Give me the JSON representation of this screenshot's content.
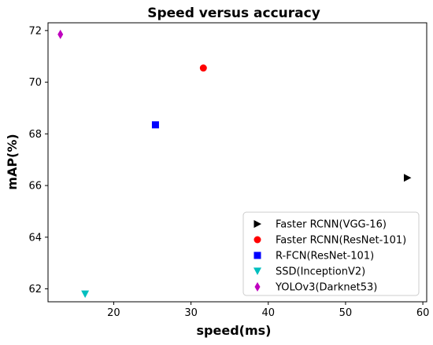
{
  "chart_data": {
    "type": "scatter",
    "title": "Speed versus accuracy",
    "xlabel": "speed(ms)",
    "ylabel": "mAP(%)",
    "xlim": [
      11.5,
      60.5
    ],
    "ylim": [
      61.5,
      72.3
    ],
    "xticks": [
      20,
      30,
      40,
      50,
      60
    ],
    "yticks": [
      62,
      64,
      66,
      68,
      70,
      72
    ],
    "grid": false,
    "legend_position": "lower-right",
    "series": [
      {
        "name": "Faster RCNN(VGG-16)",
        "marker": "triangle-right",
        "color": "#000000",
        "x": 58.0,
        "y": 66.3
      },
      {
        "name": "Faster RCNN(ResNet-101)",
        "marker": "circle",
        "color": "#ff0000",
        "x": 31.6,
        "y": 70.55
      },
      {
        "name": "R-FCN(ResNet-101)",
        "marker": "square",
        "color": "#0000ff",
        "x": 25.4,
        "y": 68.35
      },
      {
        "name": "SSD(InceptionV2)",
        "marker": "triangle-down",
        "color": "#00bfbf",
        "x": 16.3,
        "y": 61.8
      },
      {
        "name": "YOLOv3(Darknet53)",
        "marker": "diamond",
        "color": "#bf00bf",
        "x": 13.1,
        "y": 71.85
      }
    ]
  }
}
